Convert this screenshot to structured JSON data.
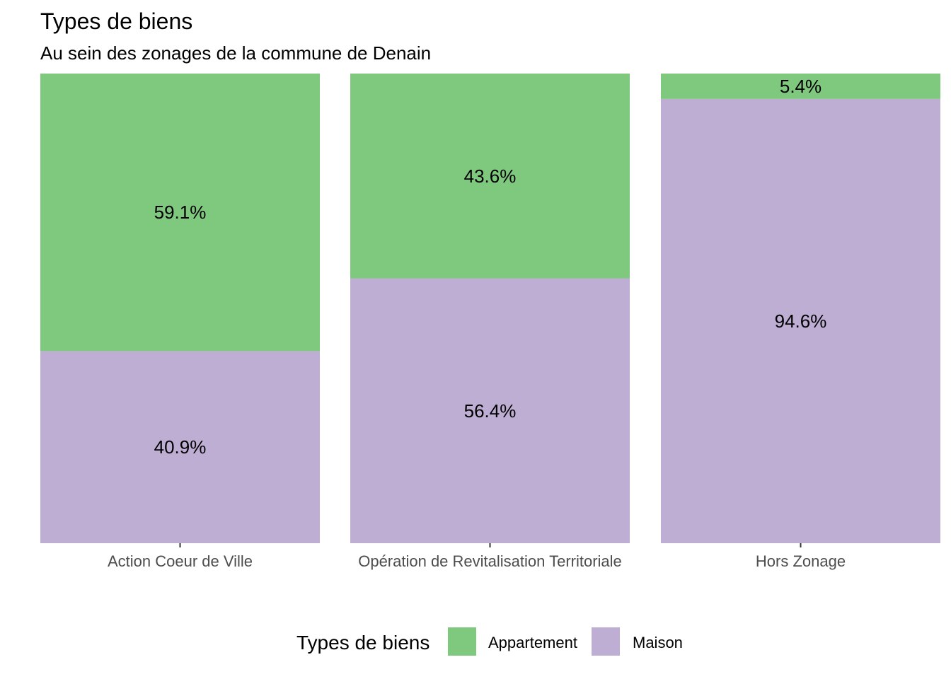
{
  "chart_data": {
    "type": "bar",
    "stacked": true,
    "normalized": true,
    "title": "Types de biens",
    "subtitle": "Au sein des zonages de la commune de Denain",
    "xlabel": "",
    "ylabel": "",
    "ylim": [
      0,
      100
    ],
    "grid": false,
    "categories": [
      "Action Coeur de Ville",
      "Opération de Revitalisation Territoriale",
      "Hors Zonage"
    ],
    "series": [
      {
        "name": "Appartement",
        "color": "#7FC97F",
        "values": [
          59.1,
          43.6,
          5.4
        ],
        "labels": [
          "59.1%",
          "43.6%",
          "5.4%"
        ]
      },
      {
        "name": "Maison",
        "color": "#BEAED4",
        "values": [
          40.9,
          56.4,
          94.6
        ],
        "labels": [
          "40.9%",
          "56.4%",
          "94.6%"
        ]
      }
    ],
    "legend": {
      "title": "Types de biens",
      "position": "bottom",
      "items": [
        "Appartement",
        "Maison"
      ]
    }
  }
}
